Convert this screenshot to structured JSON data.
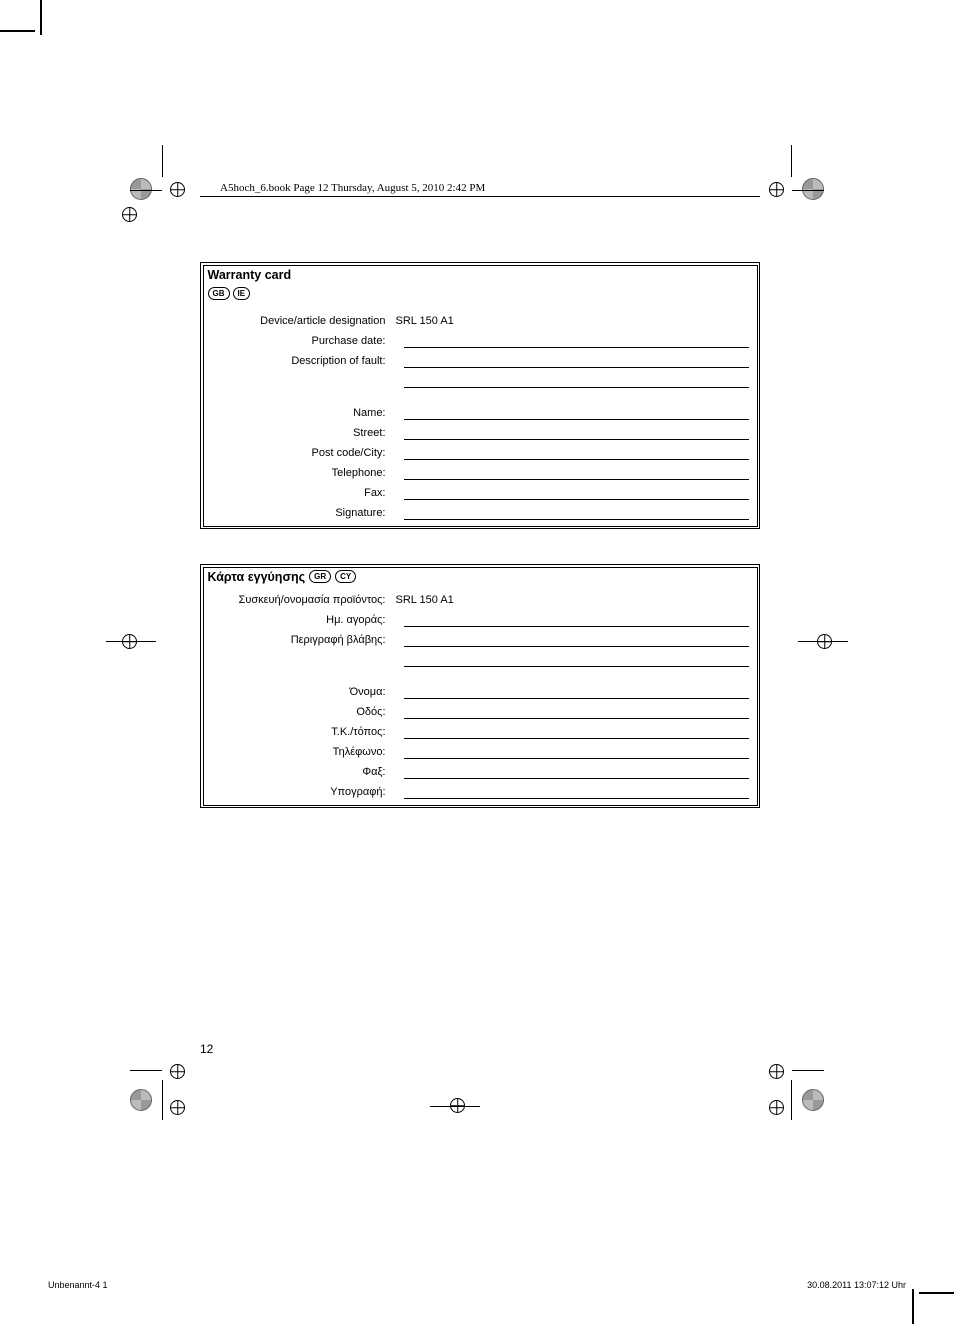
{
  "header_line": "A5hoch_6.book  Page 12  Thursday, August 5, 2010  2:42 PM",
  "card1": {
    "title": "Warranty card",
    "countries": [
      "GB",
      "IE"
    ],
    "rows": [
      {
        "label": "Device/article designation",
        "value": "SRL 150 A1",
        "line": false
      },
      {
        "label": "Purchase date:",
        "line": true
      },
      {
        "label": "Description of fault:",
        "line": true
      },
      {
        "label": "",
        "line": true
      },
      {
        "label": "Name:",
        "line": true,
        "gap": true
      },
      {
        "label": "Street:",
        "line": true
      },
      {
        "label": "Post code/City:",
        "line": true
      },
      {
        "label": "Telephone:",
        "line": true
      },
      {
        "label": "Fax:",
        "line": true
      },
      {
        "label": "Signature:",
        "line": true
      }
    ]
  },
  "card2": {
    "title": "Κάρτα εγγύησης",
    "countries": [
      "GR",
      "CY"
    ],
    "rows": [
      {
        "label": "Συσκευή/ονομασία προϊόντος:",
        "value": "SRL 150 A1",
        "line": false
      },
      {
        "label": "Ημ. αγοράς:",
        "line": true
      },
      {
        "label": "Περιγραφή βλάβης:",
        "line": true
      },
      {
        "label": "",
        "line": true
      },
      {
        "label": "Όνομα:",
        "line": true,
        "gap": true
      },
      {
        "label": "Οδός:",
        "line": true
      },
      {
        "label": "Τ.Κ./τόπος:",
        "line": true
      },
      {
        "label": "Τηλέφωνο:",
        "line": true
      },
      {
        "label": "Φαξ:",
        "line": true
      },
      {
        "label": "Υπογραφή:",
        "line": true
      }
    ]
  },
  "page_number": "12",
  "footer_left": "Unbenannt-4   1",
  "footer_right": "30.08.2011   13:07:12 Uhr"
}
